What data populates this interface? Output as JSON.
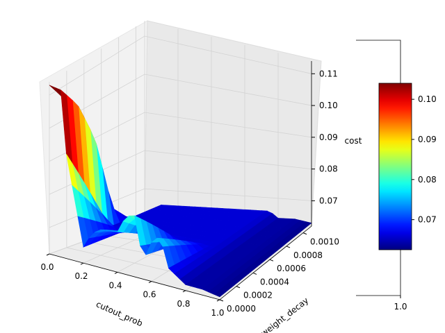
{
  "chart_data": {
    "type": "surface3d",
    "title": "",
    "xlabel": "cutout_prob",
    "ylabel": "weight_decay",
    "zlabel": "cost",
    "xlim": [
      0.0,
      1.0
    ],
    "ylim": [
      0.0,
      0.0011
    ],
    "zlim": [
      0.062,
      0.114
    ],
    "x_ticks": [
      "0.0",
      "0.2",
      "0.4",
      "0.6",
      "0.8",
      "1.0"
    ],
    "y_ticks": [
      "0.0000",
      "0.0002",
      "0.0004",
      "0.0006",
      "0.0008",
      "0.0010"
    ],
    "z_ticks": [
      "0.07",
      "0.08",
      "0.09",
      "0.10",
      "0.11"
    ],
    "colormap": "jet",
    "grid": true,
    "colorbar": {
      "location": "right",
      "range": [
        0.0625,
        0.104
      ],
      "ticks": [
        "0.07",
        "0.08",
        "0.09",
        "0.10"
      ],
      "bottom_label": "1.0"
    },
    "surface_front_cost_by_cutout_prob": {
      "x": [
        0.0,
        0.05,
        0.1,
        0.2,
        0.25,
        0.3,
        0.4,
        0.45,
        0.5,
        0.55,
        0.6,
        0.65,
        0.7,
        0.8,
        0.9,
        1.0
      ],
      "cost": [
        0.113,
        0.113,
        0.094,
        0.067,
        0.072,
        0.074,
        0.075,
        0.081,
        0.082,
        0.068,
        0.075,
        0.078,
        0.068,
        0.064,
        0.064,
        0.063
      ]
    },
    "surface_back_cost_by_weight_decay": {
      "weight_decay": [
        0.0,
        0.0002,
        0.0004,
        0.0006,
        0.0008,
        0.001
      ],
      "cost": [
        0.113,
        0.105,
        0.092,
        0.07,
        0.065,
        0.063
      ]
    }
  }
}
